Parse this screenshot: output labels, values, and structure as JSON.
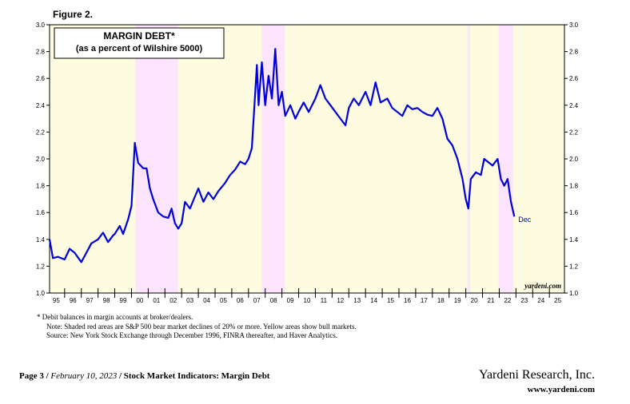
{
  "chart_data": {
    "type": "line",
    "figure_label": "Figure 2.",
    "title": "MARGIN DEBT*",
    "subtitle": "(as a percent of Wilshire 5000)",
    "annotations": {
      "end_label": "Dec",
      "watermark": "yardeni.com"
    },
    "notes": [
      "*  Debit balances in margin accounts at broker/dealers.",
      "Note: Shaded red areas are S&P 500 bear market declines of 20% or more. Yellow areas show bull markets.",
      "Source: New York Stock Exchange through December 1996, FINRA thereafter, and Haver Analytics."
    ],
    "footer": {
      "page": "Page 3 / ",
      "date": "February 10, 2023",
      "topic": " / Stock Market Indicators: Margin Debt",
      "company": "Yardeni Research, Inc.",
      "url": "www.yardeni.com"
    },
    "color": "#0000dd",
    "bull_color": "#fdfbe0",
    "bear_color": "#fce4fc",
    "bear_markets": [
      [
        2000.24,
        2002.77
      ],
      [
        2007.8,
        2009.18
      ],
      [
        2020.1,
        2020.25
      ],
      [
        2021.96,
        2022.82
      ]
    ],
    "x": [
      1995.1,
      1995.3,
      1995.6,
      1996.0,
      1996.3,
      1996.6,
      1997.0,
      1997.3,
      1997.6,
      1998.0,
      1998.3,
      1998.6,
      1998.9,
      1999.0,
      1999.3,
      1999.5,
      1999.8,
      2000.0,
      2000.2,
      2000.4,
      2000.7,
      2000.9,
      2001.1,
      2001.3,
      2001.6,
      2001.9,
      2002.2,
      2002.4,
      2002.6,
      2002.8,
      2003.0,
      2003.2,
      2003.5,
      2003.8,
      2004.0,
      2004.3,
      2004.6,
      2004.9,
      2005.2,
      2005.6,
      2005.9,
      2006.2,
      2006.5,
      2006.8,
      2007.0,
      2007.2,
      2007.5,
      2007.6,
      2007.8,
      2008.0,
      2008.2,
      2008.4,
      2008.6,
      2008.8,
      2009.0,
      2009.2,
      2009.5,
      2009.8,
      2010.0,
      2010.3,
      2010.6,
      2011.0,
      2011.3,
      2011.6,
      2011.9,
      2012.2,
      2012.5,
      2012.8,
      2013.0,
      2013.3,
      2013.6,
      2014.0,
      2014.3,
      2014.6,
      2014.9,
      2015.3,
      2015.6,
      2015.9,
      2016.2,
      2016.5,
      2016.8,
      2017.1,
      2017.4,
      2017.7,
      2018.0,
      2018.3,
      2018.6,
      2018.9,
      2019.2,
      2019.5,
      2019.8,
      2020.0,
      2020.15,
      2020.3,
      2020.6,
      2020.9,
      2021.1,
      2021.3,
      2021.6,
      2021.9,
      2022.1,
      2022.3,
      2022.5,
      2022.7,
      2022.9
    ],
    "values": [
      1.4,
      1.26,
      1.27,
      1.25,
      1.33,
      1.3,
      1.23,
      1.3,
      1.37,
      1.4,
      1.45,
      1.38,
      1.43,
      1.44,
      1.5,
      1.44,
      1.55,
      1.65,
      2.12,
      1.97,
      1.93,
      1.93,
      1.78,
      1.7,
      1.6,
      1.57,
      1.56,
      1.63,
      1.52,
      1.48,
      1.52,
      1.68,
      1.63,
      1.72,
      1.78,
      1.68,
      1.75,
      1.7,
      1.76,
      1.82,
      1.88,
      1.92,
      1.98,
      1.96,
      2.0,
      2.08,
      2.7,
      2.4,
      2.72,
      2.4,
      2.62,
      2.45,
      2.82,
      2.4,
      2.5,
      2.32,
      2.4,
      2.3,
      2.35,
      2.42,
      2.35,
      2.45,
      2.55,
      2.45,
      2.4,
      2.35,
      2.3,
      2.25,
      2.38,
      2.45,
      2.4,
      2.5,
      2.4,
      2.57,
      2.42,
      2.45,
      2.38,
      2.35,
      2.32,
      2.4,
      2.37,
      2.38,
      2.35,
      2.33,
      2.32,
      2.38,
      2.3,
      2.15,
      2.1,
      2.0,
      1.85,
      1.7,
      1.63,
      1.85,
      1.9,
      1.88,
      2.0,
      1.98,
      1.95,
      2.0,
      1.85,
      1.8,
      1.85,
      1.68,
      1.57
    ],
    "xlim": [
      1995.1,
      2025.9
    ],
    "ylim": [
      1.0,
      3.0
    ],
    "yticks": [
      {
        "value": 1.0,
        "label": "1.0"
      },
      {
        "value": 1.2,
        "label": "1.2"
      },
      {
        "value": 1.4,
        "label": "1.4"
      },
      {
        "value": 1.6,
        "label": "1.6"
      },
      {
        "value": 1.8,
        "label": "1.8"
      },
      {
        "value": 2.0,
        "label": "2.0"
      },
      {
        "value": 2.2,
        "label": "2.2"
      },
      {
        "value": 2.4,
        "label": "2.4"
      },
      {
        "value": 2.6,
        "label": "2.6"
      },
      {
        "value": 2.8,
        "label": "2.8"
      },
      {
        "value": 3.0,
        "label": "3.0"
      }
    ],
    "xticks": [
      {
        "value": 1995.5,
        "label": "95"
      },
      {
        "value": 1996.5,
        "label": "96"
      },
      {
        "value": 1997.5,
        "label": "97"
      },
      {
        "value": 1998.5,
        "label": "98"
      },
      {
        "value": 1999.5,
        "label": "99"
      },
      {
        "value": 2000.5,
        "label": "00"
      },
      {
        "value": 2001.5,
        "label": "01"
      },
      {
        "value": 2002.5,
        "label": "02"
      },
      {
        "value": 2003.5,
        "label": "03"
      },
      {
        "value": 2004.5,
        "label": "04"
      },
      {
        "value": 2005.5,
        "label": "05"
      },
      {
        "value": 2006.5,
        "label": "06"
      },
      {
        "value": 2007.5,
        "label": "07"
      },
      {
        "value": 2008.5,
        "label": "08"
      },
      {
        "value": 2009.5,
        "label": "09"
      },
      {
        "value": 2010.5,
        "label": "10"
      },
      {
        "value": 2011.5,
        "label": "11"
      },
      {
        "value": 2012.5,
        "label": "12"
      },
      {
        "value": 2013.5,
        "label": "13"
      },
      {
        "value": 2014.5,
        "label": "14"
      },
      {
        "value": 2015.5,
        "label": "15"
      },
      {
        "value": 2016.5,
        "label": "16"
      },
      {
        "value": 2017.5,
        "label": "17"
      },
      {
        "value": 2018.5,
        "label": "18"
      },
      {
        "value": 2019.5,
        "label": "19"
      },
      {
        "value": 2020.5,
        "label": "20"
      },
      {
        "value": 2021.5,
        "label": "21"
      },
      {
        "value": 2022.5,
        "label": "22"
      },
      {
        "value": 2023.5,
        "label": "23"
      },
      {
        "value": 2024.5,
        "label": "24"
      },
      {
        "value": 2025.5,
        "label": "25"
      }
    ]
  }
}
